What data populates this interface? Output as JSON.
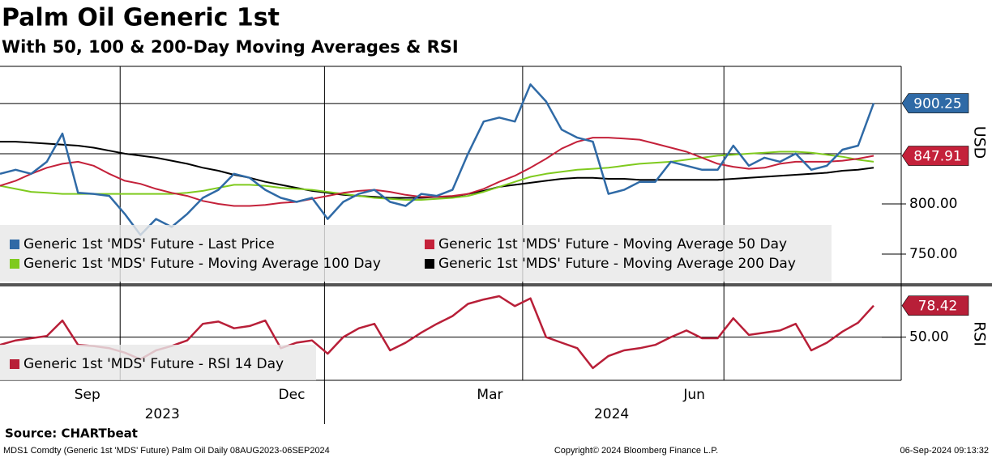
{
  "chart_data": [
    {
      "type": "line",
      "title": "Palm Oil Generic 1st",
      "subtitle": "With 50, 100 & 200-Day Moving Averages & RSI",
      "y_label": "USD",
      "ylim": [
        721,
        937
      ],
      "yticks": [
        {
          "value": 750,
          "label": "750.00"
        },
        {
          "value": 800,
          "label": "800.00"
        }
      ],
      "ygrid": [
        850,
        900
      ],
      "xlim": [
        0,
        56
      ],
      "xticks": [
        {
          "value": 5.6,
          "label": "Sep"
        },
        {
          "value": 18.7,
          "label": "Dec"
        },
        {
          "value": 31.4,
          "label": "Mar"
        },
        {
          "value": 44.5,
          "label": "Jun"
        }
      ],
      "xgrid": [
        7.7,
        20.8,
        33.5,
        46.4
      ],
      "year_ticks": [
        {
          "value": 10.4,
          "label": "2023"
        },
        {
          "value": 39.2,
          "label": "2024"
        }
      ],
      "year_breaks": [
        20.8
      ],
      "series": [
        {
          "name": "Generic 1st 'MDS' Future - Last Price",
          "color": "#2f6aa6",
          "values": [
            830,
            834,
            830,
            842,
            870,
            811,
            810,
            808,
            790,
            769,
            785,
            777,
            790,
            806,
            814,
            830,
            826,
            814,
            806,
            802,
            806,
            785,
            802,
            810,
            814,
            802,
            798,
            810,
            808,
            814,
            850,
            882,
            886,
            882,
            919,
            902,
            874,
            866,
            862,
            810,
            814,
            822,
            822,
            842,
            838,
            834,
            834,
            858,
            838,
            846,
            842,
            850,
            834,
            838,
            854,
            858,
            900.25
          ]
        },
        {
          "name": "Generic 1st 'MDS' Future - Moving Average 50 Day",
          "color": "#c4213a",
          "values": [
            818,
            823,
            830,
            836,
            840,
            842,
            838,
            830,
            823,
            820,
            815,
            811,
            808,
            803,
            800,
            798,
            798,
            799,
            801,
            802,
            805,
            808,
            811,
            813,
            814,
            812,
            809,
            807,
            807,
            808,
            810,
            815,
            822,
            828,
            836,
            845,
            855,
            862,
            866,
            866,
            865,
            864,
            860,
            856,
            852,
            846,
            840,
            837,
            835,
            836,
            840,
            842,
            842,
            842,
            843,
            845,
            847.91
          ]
        },
        {
          "name": "Generic 1st 'MDS' Future - Moving Average 100 Day",
          "color": "#7fca1e",
          "values": [
            818,
            815,
            812,
            811,
            810,
            810,
            810,
            810,
            810,
            810,
            810,
            810,
            811,
            813,
            816,
            819,
            819,
            818,
            816,
            815,
            814,
            812,
            810,
            808,
            806,
            805,
            804,
            804,
            805,
            806,
            808,
            812,
            817,
            822,
            827,
            830,
            832,
            834,
            835,
            836,
            838,
            840,
            841,
            842,
            844,
            846,
            848,
            849,
            850,
            851,
            852,
            852,
            851,
            849,
            847,
            844,
            842
          ]
        },
        {
          "name": "Generic 1st 'MDS' Future - Moving Average 200 Day",
          "color": "#000000",
          "values": [
            862,
            862,
            861,
            860,
            859,
            858,
            856,
            853,
            850,
            848,
            846,
            843,
            840,
            836,
            833,
            829,
            826,
            822,
            819,
            816,
            813,
            811,
            809,
            808,
            807,
            806,
            806,
            806,
            807,
            807,
            810,
            813,
            817,
            819,
            821,
            823,
            825,
            826,
            826,
            825,
            825,
            824,
            824,
            824,
            824,
            824,
            824,
            825,
            826,
            827,
            828,
            829,
            830,
            831,
            833,
            834,
            836
          ]
        }
      ],
      "value_label_series": [
        0,
        1
      ],
      "source": "Source: CHARTbeat",
      "footer_left": "MDS1 Comdty (Generic 1st 'MDS' Future) Palm Oil  Daily 08AUG2023-06SEP2024",
      "footer_center": "Copyright© 2024 Bloomberg Finance L.P.",
      "footer_right": "06-Sep-2024 09:13:32"
    },
    {
      "type": "line",
      "y_label": "RSI",
      "ylim": [
        11,
        95
      ],
      "yticks": [
        {
          "value": 50,
          "label": "50.00"
        }
      ],
      "series": [
        {
          "name": "Generic 1st 'MDS' Future - RSI 14 Day",
          "color": "#b81f38",
          "values": [
            43,
            47,
            49,
            51,
            65,
            43,
            42,
            40,
            36,
            30,
            38,
            42,
            47,
            62,
            64,
            58,
            60,
            65,
            40,
            45,
            47,
            35,
            50,
            58,
            62,
            38,
            45,
            54,
            62,
            69,
            80,
            84,
            87,
            78,
            85,
            50,
            45,
            40,
            22,
            33,
            38,
            40,
            43,
            50,
            56,
            49,
            49,
            67,
            52,
            54,
            56,
            62,
            38,
            45,
            55,
            63,
            78.42
          ]
        }
      ],
      "value_label_series": [
        0
      ]
    }
  ]
}
